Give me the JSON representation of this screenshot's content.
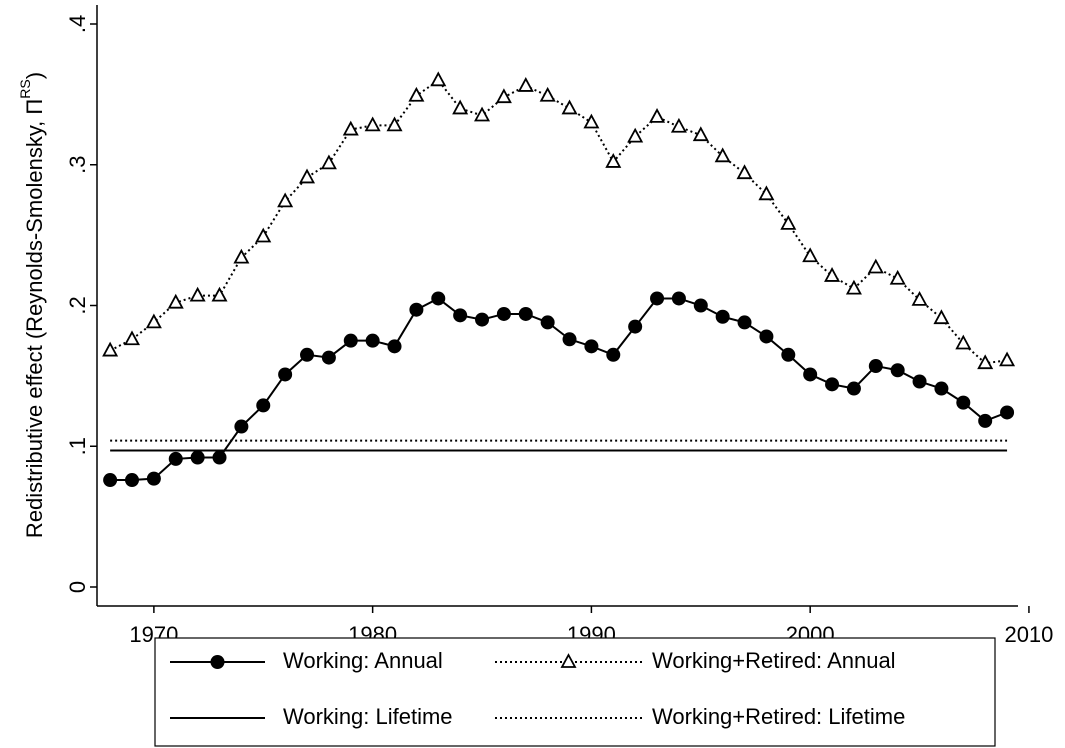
{
  "chart_data": {
    "type": "line",
    "y_label": {
      "main": "Redistributive effect (Reynolds-Smolensky, Π",
      "superscript": "RS",
      "close": ")"
    },
    "xlim": [
      1967.4,
      2009.5
    ],
    "xticks": [
      1970,
      1980,
      1990,
      2000,
      2010
    ],
    "ylim": [
      -0.0135,
      0.4135
    ],
    "yticks": [
      0,
      {
        "value": 0.1,
        "label": ".1"
      },
      {
        "value": 0.2,
        "label": ".2"
      },
      {
        "value": 0.3,
        "label": ".3"
      },
      {
        "value": 0.4,
        "label": ".4"
      }
    ],
    "grid": false,
    "legend": "bottom",
    "series": [
      {
        "name": "Working: Annual",
        "color": "#000000",
        "line_style": "solid",
        "marker": "circle",
        "x": [
          1968,
          1969,
          1970,
          1971,
          1972,
          1973,
          1974,
          1975,
          1976,
          1977,
          1978,
          1979,
          1980,
          1981,
          1982,
          1983,
          1984,
          1985,
          1986,
          1987,
          1988,
          1989,
          1990,
          1991,
          1992,
          1993,
          1994,
          1995,
          1996,
          1997,
          1998,
          1999,
          2000,
          2001,
          2002,
          2003,
          2004,
          2005,
          2006,
          2007,
          2008,
          2009
        ],
        "values": [
          0.076,
          0.076,
          0.077,
          0.091,
          0.092,
          0.092,
          0.114,
          0.129,
          0.151,
          0.165,
          0.163,
          0.175,
          0.175,
          0.171,
          0.197,
          0.205,
          0.193,
          0.19,
          0.194,
          0.194,
          0.188,
          0.176,
          0.171,
          0.165,
          0.185,
          0.205,
          0.205,
          0.2,
          0.192,
          0.188,
          0.178,
          0.165,
          0.151,
          0.144,
          0.141,
          0.157,
          0.154,
          0.146,
          0.141,
          0.131,
          0.118,
          0.124
        ]
      },
      {
        "name": "Working+Retired: Annual",
        "color": "#000000",
        "line_style": "dotted",
        "marker": "triangle",
        "x": [
          1968,
          1969,
          1970,
          1971,
          1972,
          1973,
          1974,
          1975,
          1976,
          1977,
          1978,
          1979,
          1980,
          1981,
          1982,
          1983,
          1984,
          1985,
          1986,
          1987,
          1988,
          1989,
          1990,
          1991,
          1992,
          1993,
          1994,
          1995,
          1996,
          1997,
          1998,
          1999,
          2000,
          2001,
          2002,
          2003,
          2004,
          2005,
          2006,
          2007,
          2008,
          2009
        ],
        "values": [
          0.168,
          0.176,
          0.188,
          0.202,
          0.207,
          0.207,
          0.234,
          0.249,
          0.274,
          0.291,
          0.301,
          0.325,
          0.328,
          0.328,
          0.349,
          0.36,
          0.34,
          0.335,
          0.348,
          0.356,
          0.349,
          0.34,
          0.33,
          0.302,
          0.32,
          0.334,
          0.327,
          0.321,
          0.306,
          0.294,
          0.279,
          0.258,
          0.235,
          0.221,
          0.212,
          0.227,
          0.219,
          0.204,
          0.191,
          0.173,
          0.159,
          0.161
        ]
      },
      {
        "name": "Working: Lifetime",
        "color": "#000000",
        "line_style": "solid",
        "marker": null,
        "x": [
          1968,
          2009
        ],
        "values": [
          0.097,
          0.097
        ]
      },
      {
        "name": "Working+Retired: Lifetime",
        "color": "#000000",
        "line_style": "dotted",
        "marker": null,
        "x": [
          1968,
          2009
        ],
        "values": [
          0.104,
          0.104
        ]
      }
    ]
  }
}
